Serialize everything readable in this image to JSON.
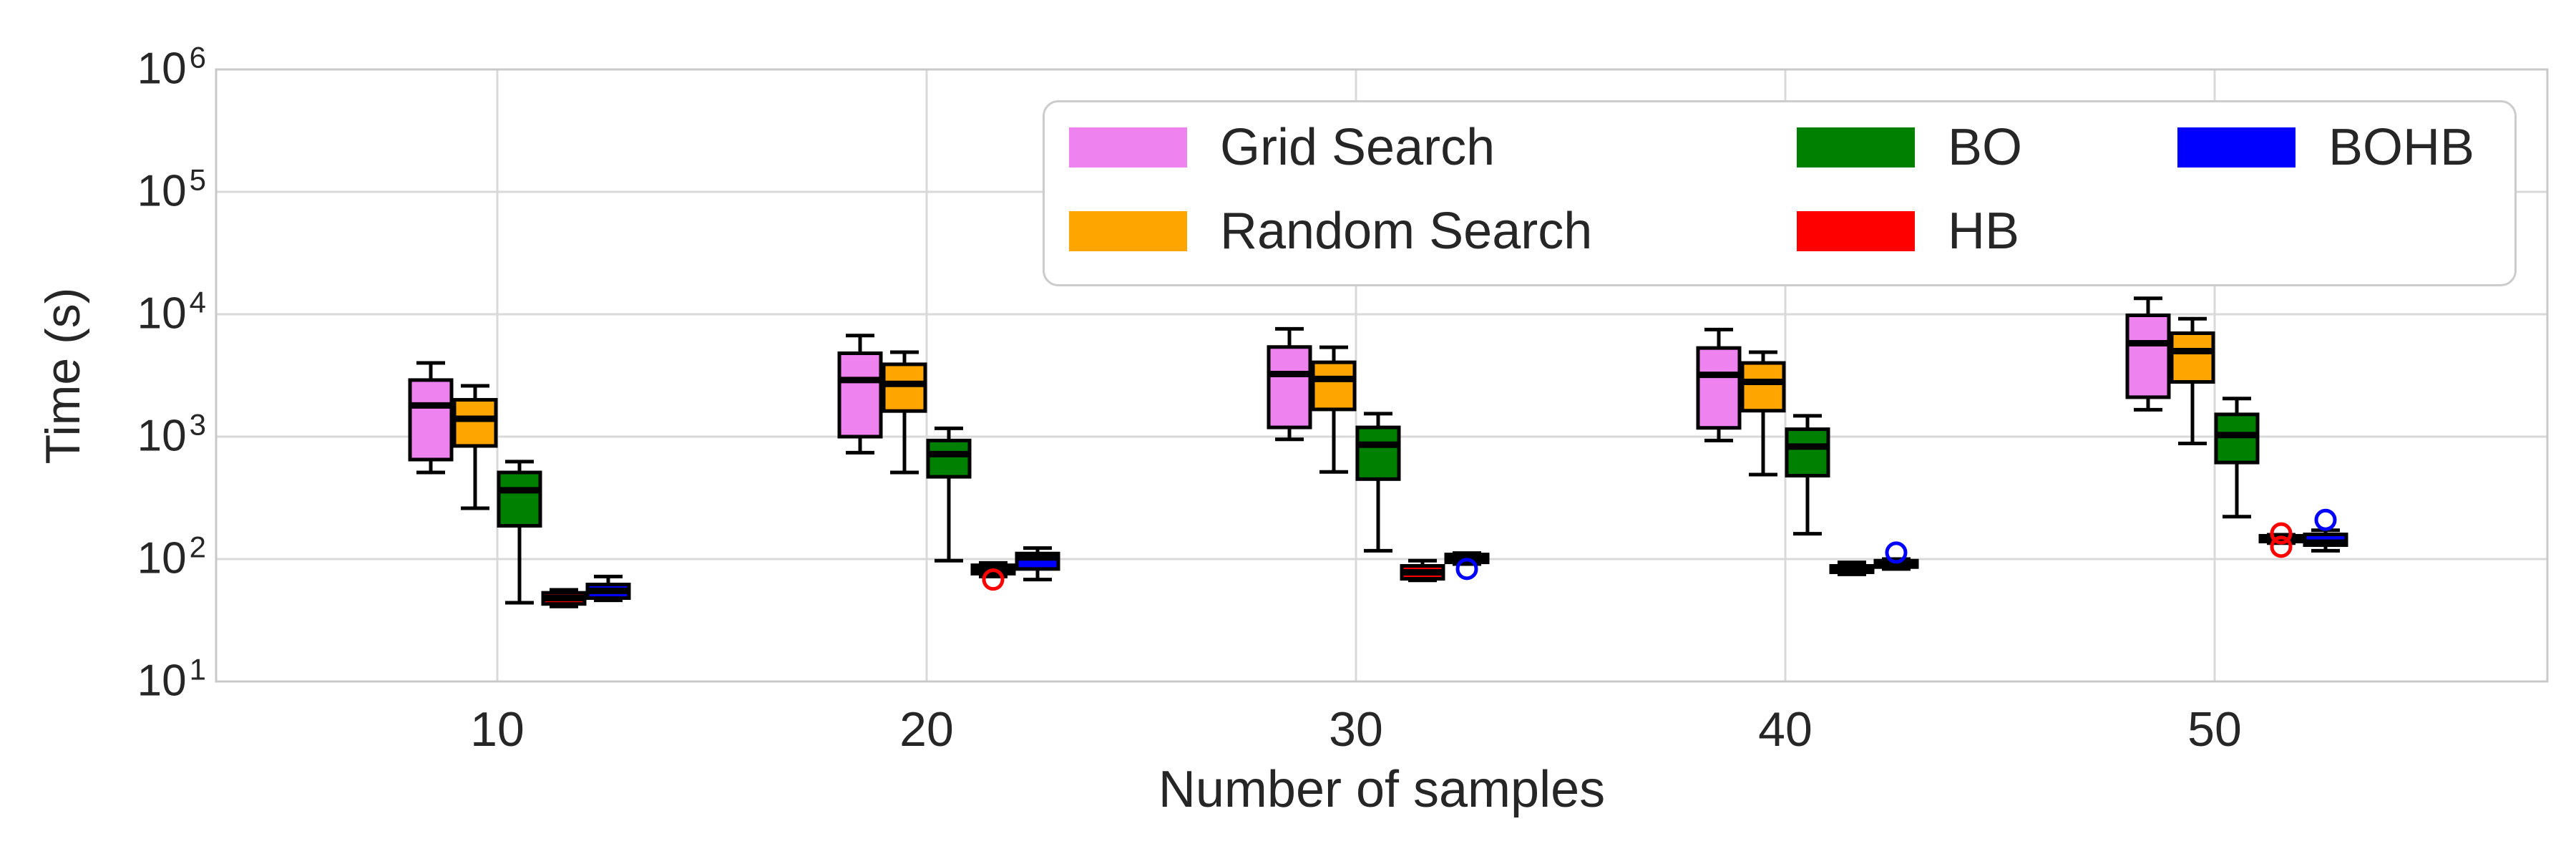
{
  "axes": {
    "y": {
      "label": "Time (s)",
      "scale": "log",
      "tick_exponents": [
        1,
        2,
        3,
        4,
        5,
        6
      ],
      "tick_base": "10"
    },
    "x": {
      "label": "Number of samples",
      "tick_labels": [
        "10",
        "20",
        "30",
        "40",
        "50"
      ]
    }
  },
  "legend": {
    "row_major_series_order": [
      0,
      2,
      4,
      1,
      3
    ]
  },
  "chart_data": {
    "type": "boxplot",
    "title": "",
    "xlabel": "Number of samples",
    "ylabel": "Time (s)",
    "y_scale": "log",
    "ylim": [
      10,
      1000000
    ],
    "grid": true,
    "legend_position": "upper center inside",
    "categories": [
      10,
      20,
      30,
      40,
      50
    ],
    "series": [
      {
        "name": "Grid Search",
        "color": "#EE82EE",
        "boxes": [
          {
            "whislo": 510,
            "q1": 650,
            "med": 1800,
            "q3": 2900,
            "whishi": 4000,
            "outliers": []
          },
          {
            "whislo": 740,
            "q1": 1000,
            "med": 2900,
            "q3": 4800,
            "whishi": 6700,
            "outliers": []
          },
          {
            "whislo": 950,
            "q1": 1190,
            "med": 3250,
            "q3": 5400,
            "whishi": 7600,
            "outliers": []
          },
          {
            "whislo": 930,
            "q1": 1180,
            "med": 3200,
            "q3": 5300,
            "whishi": 7500,
            "outliers": []
          },
          {
            "whislo": 1660,
            "q1": 2100,
            "med": 5800,
            "q3": 9800,
            "whishi": 13500,
            "outliers": []
          }
        ]
      },
      {
        "name": "Random Search",
        "color": "#FFA500",
        "boxes": [
          {
            "whislo": 260,
            "q1": 840,
            "med": 1400,
            "q3": 2000,
            "whishi": 2600,
            "outliers": []
          },
          {
            "whislo": 510,
            "q1": 1620,
            "med": 2700,
            "q3": 3900,
            "whishi": 4900,
            "outliers": []
          },
          {
            "whislo": 515,
            "q1": 1670,
            "med": 2960,
            "q3": 4050,
            "whishi": 5370,
            "outliers": []
          },
          {
            "whislo": 490,
            "q1": 1630,
            "med": 2800,
            "q3": 4000,
            "whishi": 4900,
            "outliers": []
          },
          {
            "whislo": 880,
            "q1": 2800,
            "med": 5000,
            "q3": 7000,
            "whishi": 9200,
            "outliers": []
          }
        ]
      },
      {
        "name": "BO",
        "color": "#008000",
        "boxes": [
          {
            "whislo": 44,
            "q1": 187,
            "med": 365,
            "q3": 510,
            "whishi": 625,
            "outliers": []
          },
          {
            "whislo": 97,
            "q1": 470,
            "med": 720,
            "q3": 930,
            "whishi": 1170,
            "outliers": []
          },
          {
            "whislo": 117,
            "q1": 450,
            "med": 860,
            "q3": 1190,
            "whishi": 1540,
            "outliers": []
          },
          {
            "whislo": 161,
            "q1": 480,
            "med": 830,
            "q3": 1150,
            "whishi": 1480,
            "outliers": []
          },
          {
            "whislo": 222,
            "q1": 615,
            "med": 1030,
            "q3": 1520,
            "whishi": 2050,
            "outliers": []
          }
        ]
      },
      {
        "name": "HB",
        "color": "#FF0000",
        "boxes": [
          {
            "whislo": 41,
            "q1": 43,
            "med": 48,
            "q3": 53,
            "whishi": 56,
            "outliers": []
          },
          {
            "whislo": 72,
            "q1": 76,
            "med": 82,
            "q3": 89,
            "whishi": 93,
            "outliers": [
              68
            ]
          },
          {
            "whislo": 67,
            "q1": 69,
            "med": 78,
            "q3": 88,
            "whishi": 97,
            "outliers": []
          },
          {
            "whislo": 75,
            "q1": 78,
            "med": 83,
            "q3": 88,
            "whishi": 94,
            "outliers": []
          },
          {
            "whislo": 135,
            "q1": 139,
            "med": 147,
            "q3": 155,
            "whishi": 158,
            "outliers": [
              162,
              126
            ]
          }
        ]
      },
      {
        "name": "BOHB",
        "color": "#0000FF",
        "boxes": [
          {
            "whislo": 46,
            "q1": 48,
            "med": 55,
            "q3": 62,
            "whishi": 72,
            "outliers": []
          },
          {
            "whislo": 68,
            "q1": 83,
            "med": 103,
            "q3": 111,
            "whishi": 123,
            "outliers": []
          },
          {
            "whislo": 91,
            "q1": 94,
            "med": 100,
            "q3": 109,
            "whishi": 112,
            "outliers": [
              83
            ]
          },
          {
            "whislo": 83,
            "q1": 86,
            "med": 92,
            "q3": 97,
            "whishi": 100,
            "outliers": [
              113
            ]
          },
          {
            "whislo": 117,
            "q1": 130,
            "med": 136,
            "q3": 159,
            "whishi": 172,
            "outliers": [
              209
            ]
          }
        ]
      }
    ],
    "style": {
      "grid_color": "#d9d9d9",
      "spine_color": "#c9c9c9",
      "text_color": "#262626",
      "box_edge_color": "#000000",
      "median_color": "#000000"
    }
  }
}
